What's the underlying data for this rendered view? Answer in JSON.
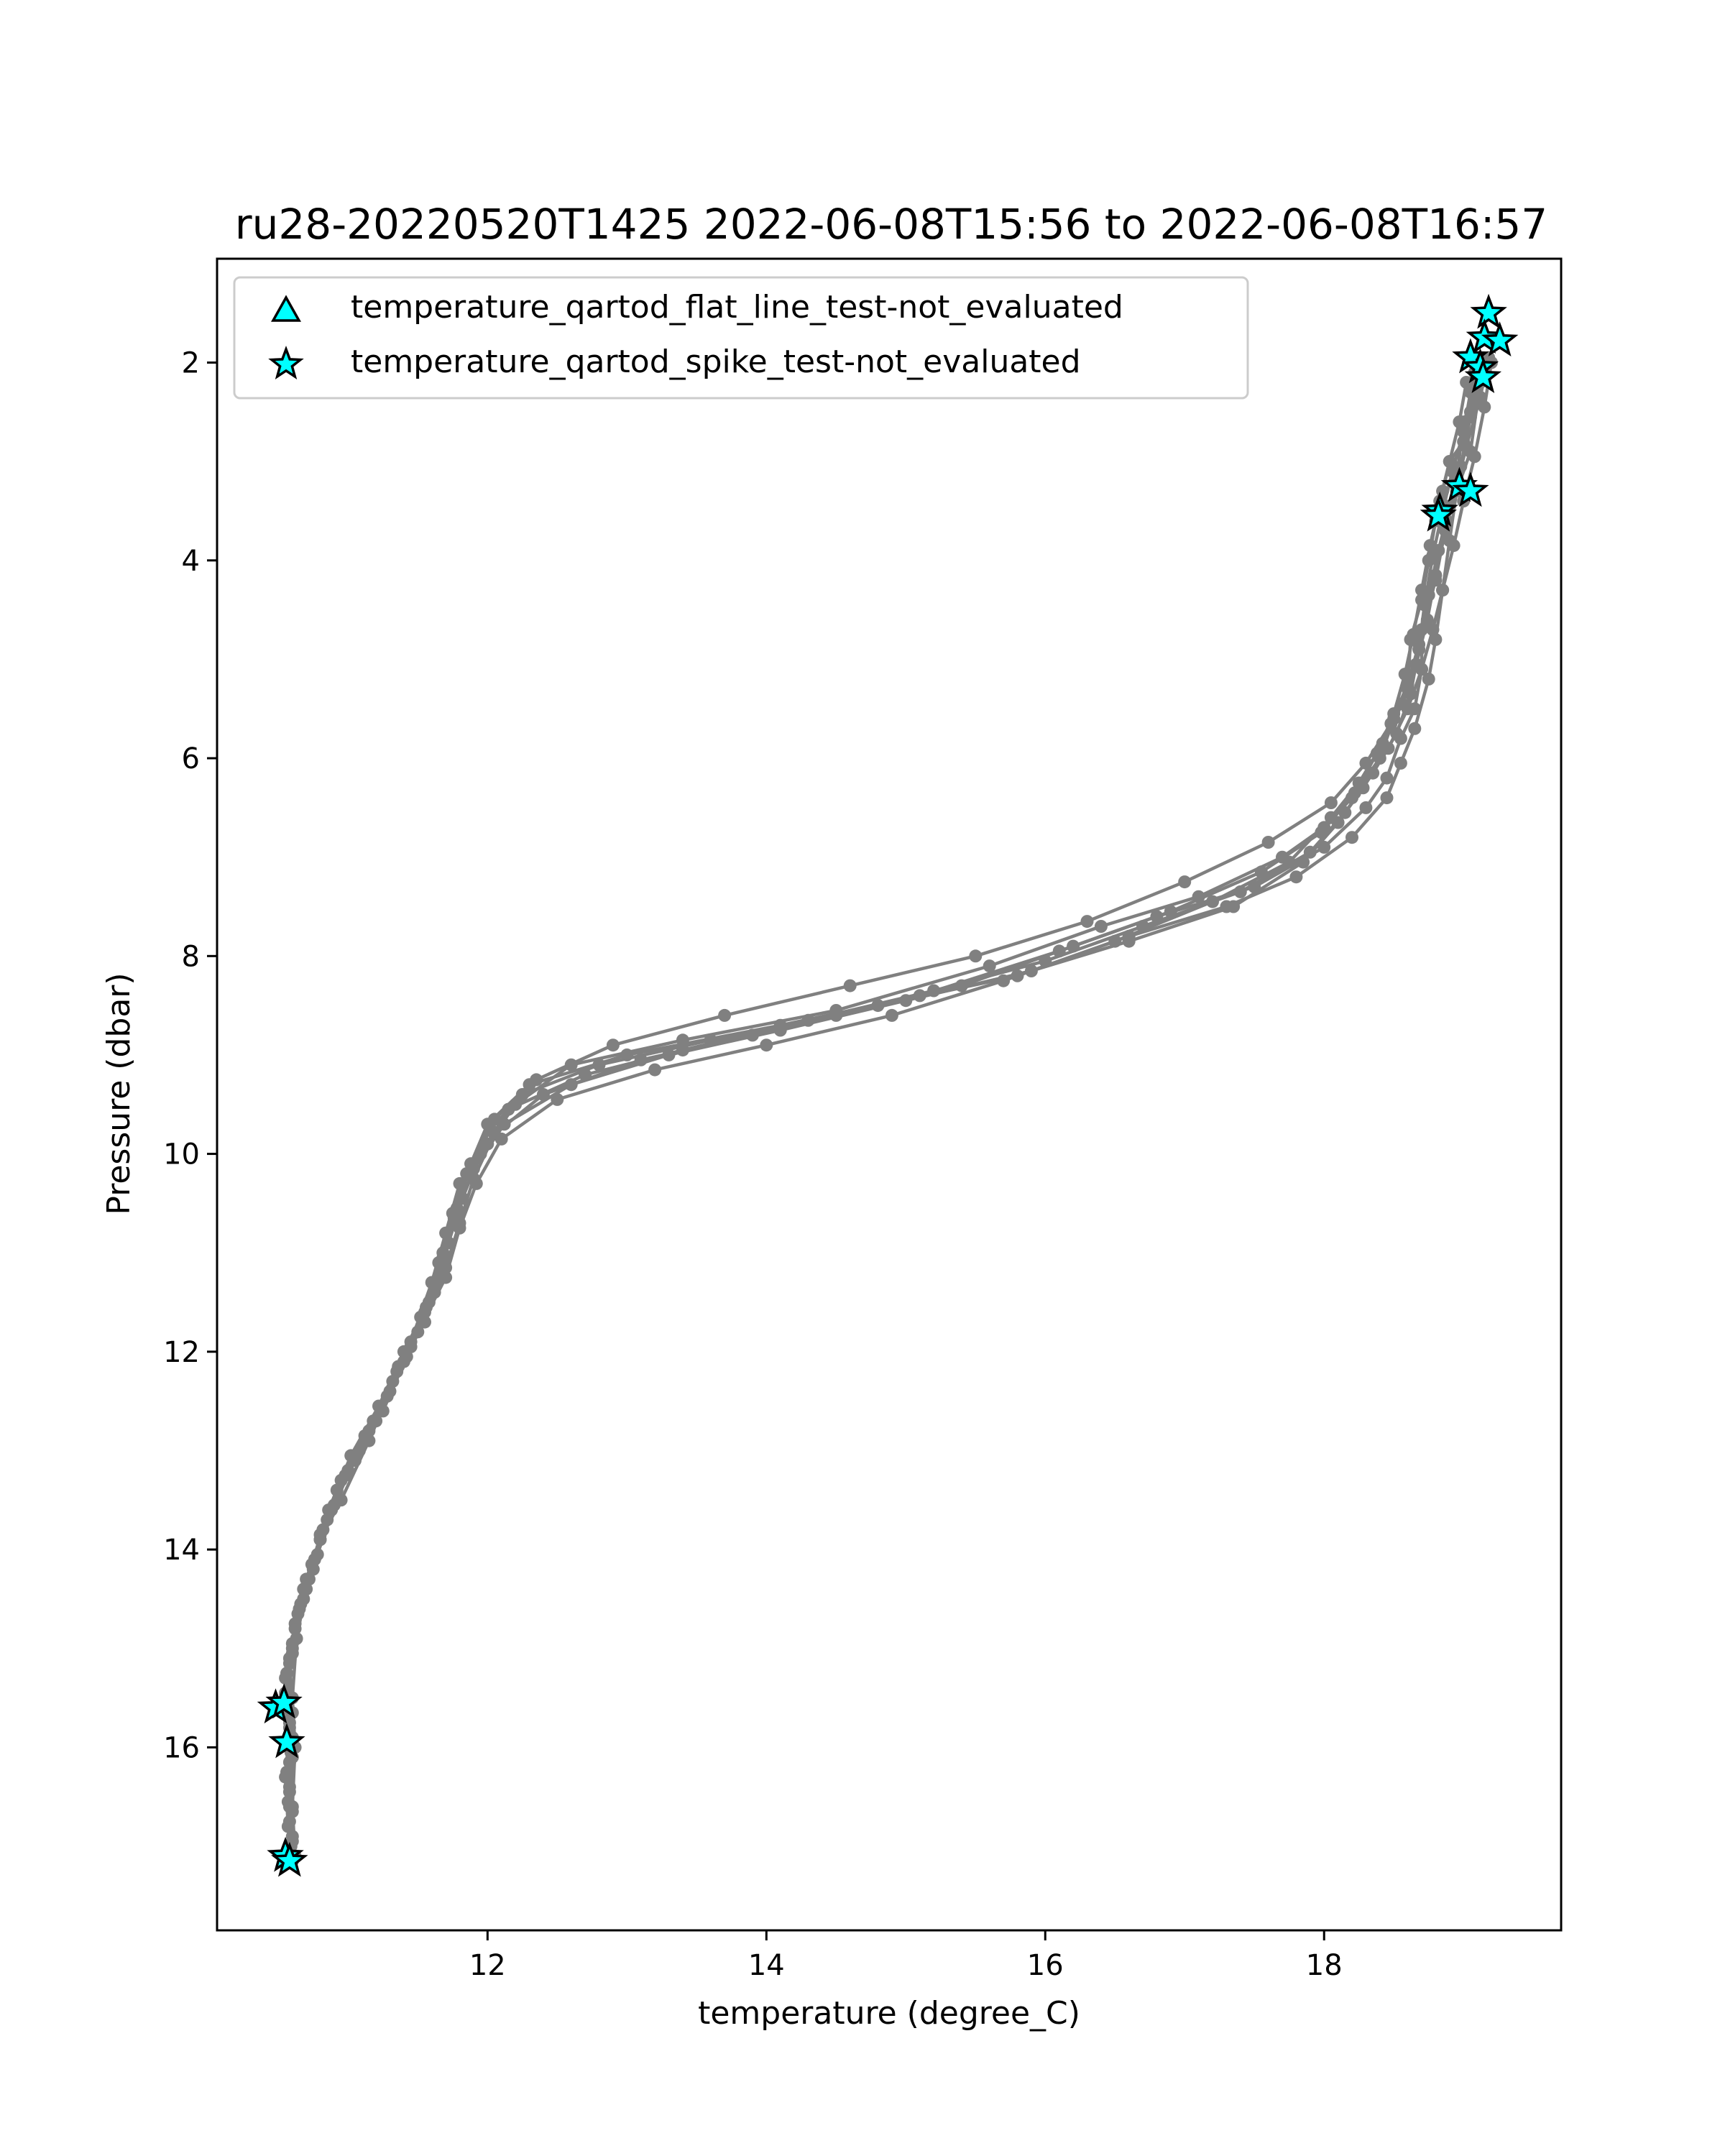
{
  "chart_data": {
    "type": "line",
    "title": "ru28-20220520T1425 2022-06-08T15:56 to 2022-06-08T16:57",
    "xlabel": "temperature (degree_C)",
    "ylabel": "Pressure (dbar)",
    "xlim": [
      10.06,
      19.7
    ],
    "ylim": [
      17.85,
      0.95
    ],
    "y_inverted": true,
    "x_ticks": [
      12,
      14,
      16,
      18
    ],
    "y_ticks": [
      2,
      4,
      6,
      8,
      10,
      12,
      14,
      16
    ],
    "grid": false,
    "legend_position": "upper-left",
    "colors": {
      "profile": "#808080",
      "flag_fill": "#00ffff",
      "flag_edge": "#000000",
      "axes": "#000000"
    },
    "legend": [
      {
        "label": "temperature_qartod_flat_line_test-not_evaluated",
        "marker": "triangle"
      },
      {
        "label": "temperature_qartod_spike_test-not_evaluated",
        "marker": "star"
      }
    ],
    "profiles": [
      {
        "points": [
          [
            19.08,
            2.1
          ],
          [
            19.05,
            2.5
          ],
          [
            19.0,
            2.8
          ],
          [
            18.9,
            3.0
          ],
          [
            18.85,
            3.3
          ],
          [
            18.8,
            3.6
          ],
          [
            18.75,
            4.0
          ],
          [
            18.7,
            4.4
          ],
          [
            18.62,
            4.8
          ],
          [
            18.6,
            5.3
          ],
          [
            18.5,
            5.6
          ],
          [
            18.4,
            6.0
          ],
          [
            18.2,
            6.4
          ],
          [
            18.0,
            6.7
          ],
          [
            17.7,
            7.0
          ],
          [
            17.1,
            7.4
          ],
          [
            16.4,
            7.7
          ],
          [
            15.6,
            8.1
          ],
          [
            14.5,
            8.55
          ],
          [
            13.4,
            8.85
          ],
          [
            12.6,
            9.1
          ],
          [
            12.2,
            9.5
          ],
          [
            12.0,
            9.9
          ],
          [
            11.8,
            10.3
          ],
          [
            11.7,
            10.8
          ],
          [
            11.6,
            11.3
          ],
          [
            11.45,
            11.9
          ],
          [
            11.3,
            12.4
          ],
          [
            11.15,
            12.9
          ],
          [
            10.95,
            13.5
          ],
          [
            10.8,
            13.9
          ],
          [
            10.7,
            14.4
          ],
          [
            10.63,
            14.9
          ],
          [
            10.6,
            15.5
          ],
          [
            10.62,
            16.0
          ],
          [
            10.6,
            16.6
          ],
          [
            10.62,
            17.1
          ]
        ]
      },
      {
        "points": [
          [
            19.12,
            2.2
          ],
          [
            19.0,
            2.6
          ],
          [
            18.95,
            3.2
          ],
          [
            18.88,
            3.6
          ],
          [
            18.8,
            4.2
          ],
          [
            18.7,
            4.7
          ],
          [
            18.7,
            5.1
          ],
          [
            18.65,
            5.5
          ],
          [
            18.55,
            5.8
          ],
          [
            18.45,
            6.2
          ],
          [
            18.3,
            6.5
          ],
          [
            18.0,
            6.9
          ],
          [
            17.5,
            7.3
          ],
          [
            16.8,
            7.6
          ],
          [
            16.1,
            7.95
          ],
          [
            15.1,
            8.4
          ],
          [
            14.1,
            8.7
          ],
          [
            13.0,
            9.0
          ],
          [
            12.3,
            9.3
          ],
          [
            12.0,
            9.7
          ],
          [
            11.85,
            10.2
          ],
          [
            11.75,
            10.6
          ],
          [
            11.65,
            11.1
          ],
          [
            11.55,
            11.6
          ],
          [
            11.4,
            12.1
          ],
          [
            11.2,
            12.7
          ],
          [
            11.0,
            13.2
          ],
          [
            10.85,
            13.7
          ],
          [
            10.75,
            14.2
          ],
          [
            10.65,
            14.6
          ],
          [
            10.58,
            15.1
          ],
          [
            10.55,
            15.6
          ],
          [
            10.6,
            16.1
          ],
          [
            10.58,
            16.6
          ],
          [
            10.6,
            17.15
          ]
        ]
      },
      {
        "points": [
          [
            19.15,
            2.05
          ],
          [
            19.1,
            2.4
          ],
          [
            19.05,
            2.9
          ],
          [
            18.95,
            3.3
          ],
          [
            18.9,
            3.8
          ],
          [
            18.85,
            4.3
          ],
          [
            18.8,
            4.8
          ],
          [
            18.75,
            5.2
          ],
          [
            18.65,
            5.7
          ],
          [
            18.55,
            6.05
          ],
          [
            18.45,
            6.4
          ],
          [
            18.2,
            6.8
          ],
          [
            17.8,
            7.2
          ],
          [
            17.3,
            7.5
          ],
          [
            16.6,
            7.8
          ],
          [
            15.8,
            8.2
          ],
          [
            14.8,
            8.5
          ],
          [
            13.9,
            8.8
          ],
          [
            13.1,
            9.05
          ],
          [
            12.4,
            9.4
          ],
          [
            12.05,
            9.8
          ],
          [
            11.9,
            10.25
          ],
          [
            11.8,
            10.7
          ],
          [
            11.7,
            11.15
          ],
          [
            11.55,
            11.7
          ],
          [
            11.35,
            12.2
          ],
          [
            11.15,
            12.8
          ],
          [
            10.95,
            13.3
          ],
          [
            10.8,
            13.85
          ],
          [
            10.72,
            14.3
          ],
          [
            10.62,
            14.8
          ],
          [
            10.55,
            15.3
          ],
          [
            10.58,
            15.8
          ],
          [
            10.55,
            16.3
          ],
          [
            10.57,
            16.8
          ]
        ]
      },
      {
        "points": [
          [
            19.05,
            2.3
          ],
          [
            19.0,
            2.7
          ],
          [
            18.92,
            3.1
          ],
          [
            18.85,
            3.5
          ],
          [
            18.78,
            3.95
          ],
          [
            18.72,
            4.45
          ],
          [
            18.68,
            4.9
          ],
          [
            18.62,
            5.35
          ],
          [
            18.52,
            5.75
          ],
          [
            18.35,
            6.15
          ],
          [
            18.15,
            6.55
          ],
          [
            17.9,
            6.95
          ],
          [
            17.4,
            7.35
          ],
          [
            16.7,
            7.7
          ],
          [
            16.0,
            8.05
          ],
          [
            15.2,
            8.35
          ],
          [
            14.3,
            8.65
          ],
          [
            13.4,
            8.95
          ],
          [
            12.7,
            9.2
          ],
          [
            12.15,
            9.55
          ],
          [
            11.95,
            10.0
          ],
          [
            11.82,
            10.45
          ],
          [
            11.72,
            10.9
          ],
          [
            11.62,
            11.4
          ],
          [
            11.45,
            11.95
          ],
          [
            11.28,
            12.45
          ],
          [
            11.08,
            13.0
          ],
          [
            10.9,
            13.55
          ],
          [
            10.78,
            14.05
          ],
          [
            10.68,
            14.5
          ],
          [
            10.6,
            15.0
          ],
          [
            10.57,
            15.5
          ],
          [
            10.6,
            15.95
          ],
          [
            10.58,
            16.45
          ],
          [
            10.6,
            16.95
          ]
        ]
      },
      {
        "points": [
          [
            19.1,
            2.15
          ],
          [
            19.05,
            2.55
          ],
          [
            18.98,
            3.05
          ],
          [
            18.9,
            3.45
          ],
          [
            18.82,
            3.9
          ],
          [
            18.75,
            4.35
          ],
          [
            18.68,
            4.85
          ],
          [
            18.6,
            5.25
          ],
          [
            18.48,
            5.65
          ],
          [
            18.3,
            6.05
          ],
          [
            18.05,
            6.45
          ],
          [
            17.6,
            6.85
          ],
          [
            17.0,
            7.25
          ],
          [
            16.3,
            7.65
          ],
          [
            15.5,
            8.0
          ],
          [
            14.6,
            8.3
          ],
          [
            13.7,
            8.6
          ],
          [
            12.9,
            8.9
          ],
          [
            12.35,
            9.25
          ],
          [
            12.05,
            9.65
          ],
          [
            11.88,
            10.1
          ],
          [
            11.78,
            10.55
          ],
          [
            11.68,
            11.0
          ],
          [
            11.58,
            11.5
          ],
          [
            11.42,
            12.05
          ],
          [
            11.25,
            12.6
          ],
          [
            11.05,
            13.1
          ],
          [
            10.88,
            13.6
          ],
          [
            10.76,
            14.1
          ],
          [
            10.66,
            14.55
          ],
          [
            10.6,
            15.05
          ],
          [
            10.56,
            15.55
          ],
          [
            10.59,
            16.05
          ],
          [
            10.57,
            16.55
          ],
          [
            10.59,
            17.0
          ]
        ]
      },
      {
        "points": [
          [
            19.18,
            1.95
          ],
          [
            19.12,
            2.35
          ],
          [
            19.02,
            2.85
          ],
          [
            18.95,
            3.25
          ],
          [
            18.87,
            3.7
          ],
          [
            18.8,
            4.15
          ],
          [
            18.74,
            4.6
          ],
          [
            18.66,
            5.05
          ],
          [
            18.56,
            5.45
          ],
          [
            18.42,
            5.85
          ],
          [
            18.25,
            6.25
          ],
          [
            18.05,
            6.6
          ],
          [
            17.75,
            7.05
          ],
          [
            17.2,
            7.45
          ],
          [
            16.5,
            7.85
          ],
          [
            15.7,
            8.25
          ],
          [
            14.9,
            8.6
          ],
          [
            14.0,
            8.9
          ],
          [
            13.2,
            9.15
          ],
          [
            12.5,
            9.45
          ],
          [
            12.1,
            9.85
          ],
          [
            11.92,
            10.3
          ],
          [
            11.8,
            10.75
          ],
          [
            11.7,
            11.25
          ],
          [
            11.5,
            11.8
          ],
          [
            11.32,
            12.3
          ],
          [
            11.12,
            12.85
          ],
          [
            10.92,
            13.4
          ],
          [
            10.8,
            13.9
          ],
          [
            10.68,
            14.4
          ],
          [
            10.6,
            14.95
          ],
          [
            10.55,
            15.45
          ],
          [
            10.6,
            15.9
          ],
          [
            10.58,
            16.4
          ],
          [
            10.6,
            16.9
          ]
        ]
      },
      {
        "points": [
          [
            19.02,
            2.2
          ],
          [
            18.97,
            2.6
          ],
          [
            18.9,
            3.0
          ],
          [
            18.83,
            3.4
          ],
          [
            18.76,
            3.85
          ],
          [
            18.7,
            4.3
          ],
          [
            18.64,
            4.75
          ],
          [
            18.58,
            5.15
          ],
          [
            18.5,
            5.55
          ],
          [
            18.38,
            5.95
          ],
          [
            18.22,
            6.35
          ],
          [
            17.98,
            6.75
          ],
          [
            17.55,
            7.15
          ],
          [
            16.9,
            7.55
          ],
          [
            16.2,
            7.9
          ],
          [
            15.4,
            8.3
          ],
          [
            14.5,
            8.6
          ],
          [
            13.6,
            8.85
          ],
          [
            12.8,
            9.1
          ],
          [
            12.25,
            9.4
          ],
          [
            12.02,
            9.75
          ],
          [
            11.86,
            10.2
          ],
          [
            11.76,
            10.65
          ],
          [
            11.66,
            11.1
          ],
          [
            11.52,
            11.65
          ],
          [
            11.36,
            12.15
          ],
          [
            11.18,
            12.7
          ],
          [
            10.98,
            13.25
          ],
          [
            10.82,
            13.8
          ],
          [
            10.7,
            14.3
          ],
          [
            10.62,
            14.75
          ],
          [
            10.56,
            15.25
          ],
          [
            10.58,
            15.75
          ],
          [
            10.56,
            16.25
          ],
          [
            10.58,
            16.75
          ]
        ]
      },
      {
        "points": [
          [
            19.2,
            2.0
          ],
          [
            19.15,
            2.45
          ],
          [
            19.08,
            2.95
          ],
          [
            19.0,
            3.4
          ],
          [
            18.93,
            3.85
          ],
          [
            18.85,
            4.3
          ],
          [
            18.78,
            4.7
          ],
          [
            18.7,
            5.1
          ],
          [
            18.6,
            5.5
          ],
          [
            18.46,
            5.9
          ],
          [
            18.28,
            6.3
          ],
          [
            18.1,
            6.65
          ],
          [
            17.85,
            7.05
          ],
          [
            17.35,
            7.5
          ],
          [
            16.6,
            7.85
          ],
          [
            15.9,
            8.15
          ],
          [
            15.0,
            8.45
          ],
          [
            14.1,
            8.75
          ],
          [
            13.3,
            9.0
          ],
          [
            12.6,
            9.3
          ],
          [
            12.12,
            9.7
          ],
          [
            11.9,
            10.15
          ],
          [
            11.78,
            10.6
          ],
          [
            11.68,
            11.05
          ],
          [
            11.56,
            11.55
          ],
          [
            11.4,
            12.0
          ],
          [
            11.22,
            12.55
          ],
          [
            11.02,
            13.05
          ],
          [
            10.86,
            13.6
          ],
          [
            10.74,
            14.15
          ],
          [
            10.64,
            14.65
          ],
          [
            10.58,
            15.15
          ],
          [
            10.6,
            15.65
          ],
          [
            10.58,
            16.15
          ],
          [
            10.6,
            16.65
          ]
        ]
      }
    ],
    "spike_points": [
      [
        19.18,
        1.5
      ],
      [
        19.15,
        1.75
      ],
      [
        19.26,
        1.78
      ],
      [
        19.05,
        1.95
      ],
      [
        19.12,
        2.05
      ],
      [
        19.14,
        2.15
      ],
      [
        18.97,
        3.25
      ],
      [
        19.05,
        3.3
      ],
      [
        18.83,
        3.5
      ],
      [
        18.82,
        3.55
      ],
      [
        10.48,
        15.6
      ],
      [
        10.54,
        15.55
      ],
      [
        10.56,
        15.95
      ],
      [
        10.55,
        17.1
      ],
      [
        10.58,
        17.15
      ]
    ]
  }
}
